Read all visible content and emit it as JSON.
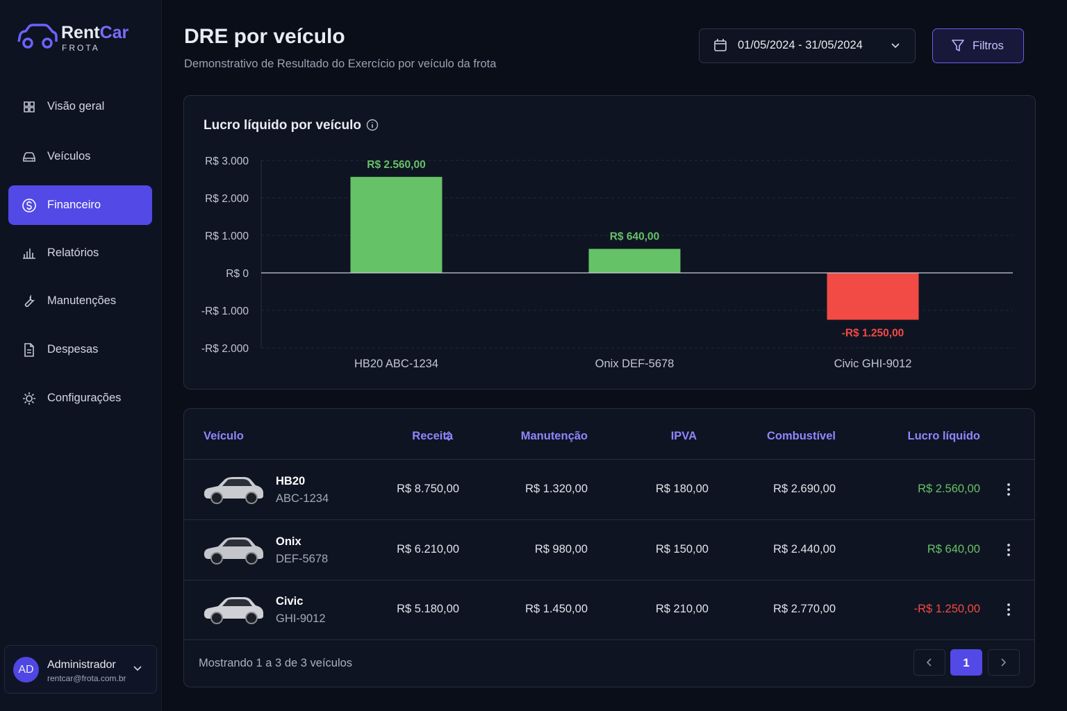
{
  "brand": {
    "name_a": "Rent",
    "name_b": "Car",
    "tagline": "FROTA"
  },
  "nav": {
    "items": [
      "Visão geral",
      "Veículos",
      "Financeiro",
      "Relatórios",
      "Manutenções",
      "Despesas",
      "Configurações"
    ],
    "active": 2
  },
  "user": {
    "initials": "AD",
    "name": "Administrador",
    "email": "rentcar@frota.com.br"
  },
  "header": {
    "title": "DRE por veículo",
    "subtitle": "Demonstrativo de Resultado do Exercício por veículo da frota",
    "date_range": "01/05/2024 - 31/05/2024",
    "filters": "Filtros"
  },
  "chart_data": {
    "type": "bar",
    "title": "Lucro líquido por veículo",
    "categories": [
      "HB20 ABC-1234",
      "Onix DEF-5678",
      "Civic GHI-9012"
    ],
    "values": [
      2560,
      640,
      -1250
    ],
    "value_labels": [
      "R$ 2.560,00",
      "R$ 640,00",
      "-R$ 1.250,00"
    ],
    "positive_color": "#66c266",
    "negative_color": "#f24a45",
    "ylim": [
      -2000,
      3000
    ],
    "yticks": [
      {
        "value": -2000,
        "label": "-R$ 2.000"
      },
      {
        "value": -1000,
        "label": "-R$ 1.000"
      },
      {
        "value": 0,
        "label": "R$ 0"
      },
      {
        "value": 1000,
        "label": "R$ 1.000"
      },
      {
        "value": 2000,
        "label": "R$ 2.000"
      },
      {
        "value": 3000,
        "label": "R$ 3.000"
      }
    ],
    "grid": true
  },
  "table": {
    "columns": [
      "Veículo",
      "Receita",
      "Manutenção",
      "IPVA",
      "Combustível",
      "Lucro líquido"
    ],
    "rows": [
      [
        "HB20",
        "ABC-1234",
        "R$ 8.750,00",
        "R$ 1.320,00",
        "R$ 180,00",
        "R$ 2.690,00",
        "R$ 2.560,00"
      ],
      [
        "Onix",
        "DEF-5678",
        "R$ 6.210,00",
        "R$ 980,00",
        "R$ 150,00",
        "R$ 2.440,00",
        "R$ 640,00"
      ],
      [
        "Civic",
        "GHI-9012",
        "R$ 5.180,00",
        "R$ 1.450,00",
        "R$ 210,00",
        "R$ 2.770,00",
        "-R$ 1.250,00"
      ]
    ],
    "footer": "Mostrando 1 a 3 de 3 veículos",
    "page": 1
  }
}
